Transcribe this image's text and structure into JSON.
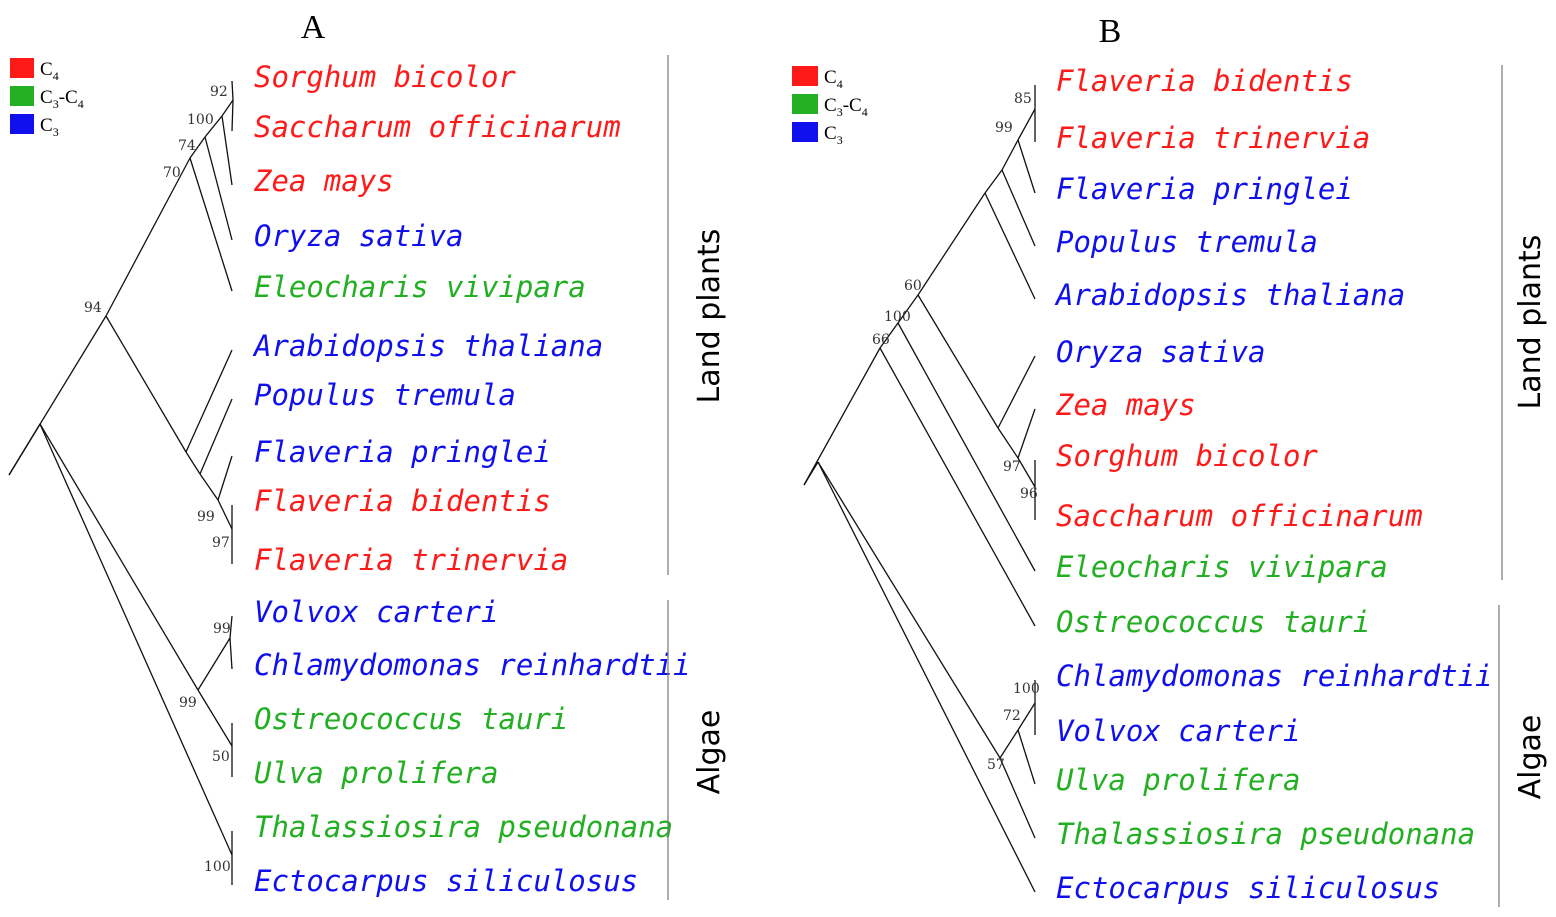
{
  "colors": {
    "C4": "#ff1a1a",
    "C3C4": "#22b022",
    "C3": "#1010ee"
  },
  "legend": [
    {
      "key": "C4",
      "parts": [
        "C",
        "4"
      ]
    },
    {
      "key": "C3C4",
      "parts": [
        "C",
        "3",
        "-C",
        "4"
      ]
    },
    {
      "key": "C3",
      "parts": [
        "C",
        "3"
      ]
    }
  ],
  "panels": [
    {
      "id": "A",
      "title": "A",
      "groups": [
        "Land plants",
        "Algae"
      ],
      "taxa": [
        {
          "name": "Sorghum bicolor",
          "type": "C4"
        },
        {
          "name": "Saccharum officinarum",
          "type": "C4"
        },
        {
          "name": "Zea mays",
          "type": "C4"
        },
        {
          "name": "Oryza sativa",
          "type": "C3"
        },
        {
          "name": "Eleocharis vivipara",
          "type": "C3C4"
        },
        {
          "name": "Arabidopsis thaliana",
          "type": "C3"
        },
        {
          "name": "Populus tremula",
          "type": "C3"
        },
        {
          "name": "Flaveria pringlei",
          "type": "C3"
        },
        {
          "name": "Flaveria bidentis",
          "type": "C4"
        },
        {
          "name": "Flaveria trinervia",
          "type": "C4"
        },
        {
          "name": "Volvox carteri",
          "type": "C3"
        },
        {
          "name": "Chlamydomonas reinhardtii",
          "type": "C3"
        },
        {
          "name": "Ostreococcus tauri",
          "type": "C3C4"
        },
        {
          "name": "Ulva prolifera",
          "type": "C3C4"
        },
        {
          "name": "Thalassiosira pseudonana",
          "type": "C3C4"
        },
        {
          "name": "Ectocarpus siliculosus",
          "type": "C3"
        }
      ],
      "bootstrap": [
        "92",
        "100",
        "74",
        "70",
        "94",
        "99",
        "97",
        "99",
        "99",
        "50",
        "100"
      ]
    },
    {
      "id": "B",
      "title": "B",
      "groups": [
        "Land plants",
        "Algae"
      ],
      "taxa": [
        {
          "name": "Flaveria bidentis",
          "type": "C4"
        },
        {
          "name": "Flaveria trinervia",
          "type": "C4"
        },
        {
          "name": "Flaveria pringlei",
          "type": "C3"
        },
        {
          "name": "Populus tremula",
          "type": "C3"
        },
        {
          "name": "Arabidopsis thaliana",
          "type": "C3"
        },
        {
          "name": "Oryza sativa",
          "type": "C3"
        },
        {
          "name": "Zea mays",
          "type": "C4"
        },
        {
          "name": "Sorghum bicolor",
          "type": "C4"
        },
        {
          "name": "Saccharum officinarum",
          "type": "C4"
        },
        {
          "name": "Eleocharis vivipara",
          "type": "C3C4"
        },
        {
          "name": "Ostreococcus tauri",
          "type": "C3C4"
        },
        {
          "name": "Chlamydomonas reinhardtii",
          "type": "C3"
        },
        {
          "name": "Volvox carteri",
          "type": "C3"
        },
        {
          "name": "Ulva prolifera",
          "type": "C3C4"
        },
        {
          "name": "Thalassiosira pseudonana",
          "type": "C3C4"
        },
        {
          "name": "Ectocarpus siliculosus",
          "type": "C3"
        }
      ],
      "bootstrap": [
        "85",
        "99",
        "60",
        "100",
        "66",
        "97",
        "96",
        "100",
        "72",
        "57"
      ]
    }
  ]
}
